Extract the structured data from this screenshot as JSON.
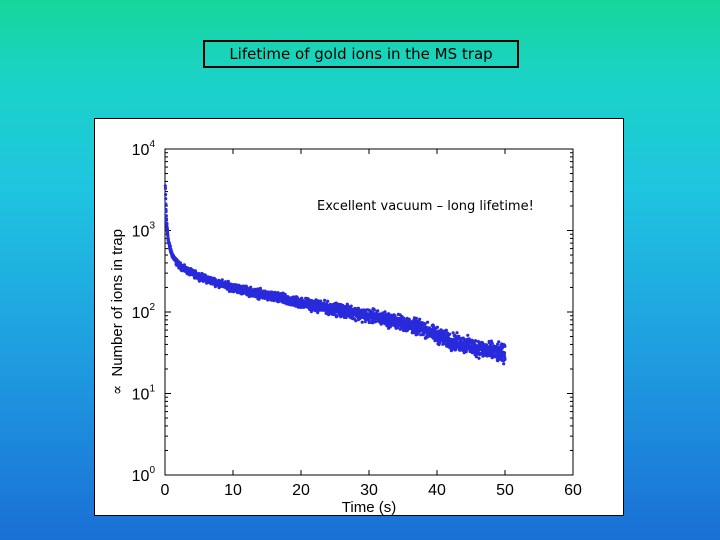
{
  "slide_title": "Lifetime of gold ions in the MS trap",
  "chart_data": {
    "type": "scatter",
    "title": "",
    "xlabel": "Time (s)",
    "ylabel": "∝ Number of ions in trap",
    "ylabel_symbol": "∝",
    "ylabel_text": "Number of ions in trap",
    "annotation": "Excellent vacuum – long lifetime!",
    "xlim": [
      0,
      60
    ],
    "ylim": [
      1,
      10000
    ],
    "yscale": "log",
    "grid": false,
    "xticks": [
      "0",
      "10",
      "20",
      "30",
      "40",
      "50",
      "60"
    ],
    "yticks": [
      {
        "base": "10",
        "exp": "0"
      },
      {
        "base": "10",
        "exp": "1"
      },
      {
        "base": "10",
        "exp": "2"
      },
      {
        "base": "10",
        "exp": "3"
      },
      {
        "base": "10",
        "exp": "4"
      }
    ],
    "marker_color": "#2a2adc",
    "series": [
      {
        "x": [
          0.05,
          0.1,
          0.15,
          0.2,
          0.3,
          0.4,
          0.5,
          0.7,
          1.0,
          1.5,
          2,
          3,
          4,
          5,
          6,
          7,
          8,
          9,
          10,
          12,
          14,
          16,
          18,
          20,
          22,
          25,
          28,
          30,
          32,
          35,
          38,
          40,
          42,
          45,
          48,
          50
        ],
        "y": [
          3500,
          2500,
          1800,
          1400,
          1100,
          900,
          750,
          620,
          520,
          430,
          380,
          330,
          300,
          275,
          255,
          240,
          225,
          212,
          200,
          182,
          166,
          152,
          140,
          130,
          120,
          108,
          97,
          90,
          83,
          73,
          62,
          52,
          44,
          38,
          33,
          30
        ],
        "spread": 0.1
      }
    ]
  }
}
